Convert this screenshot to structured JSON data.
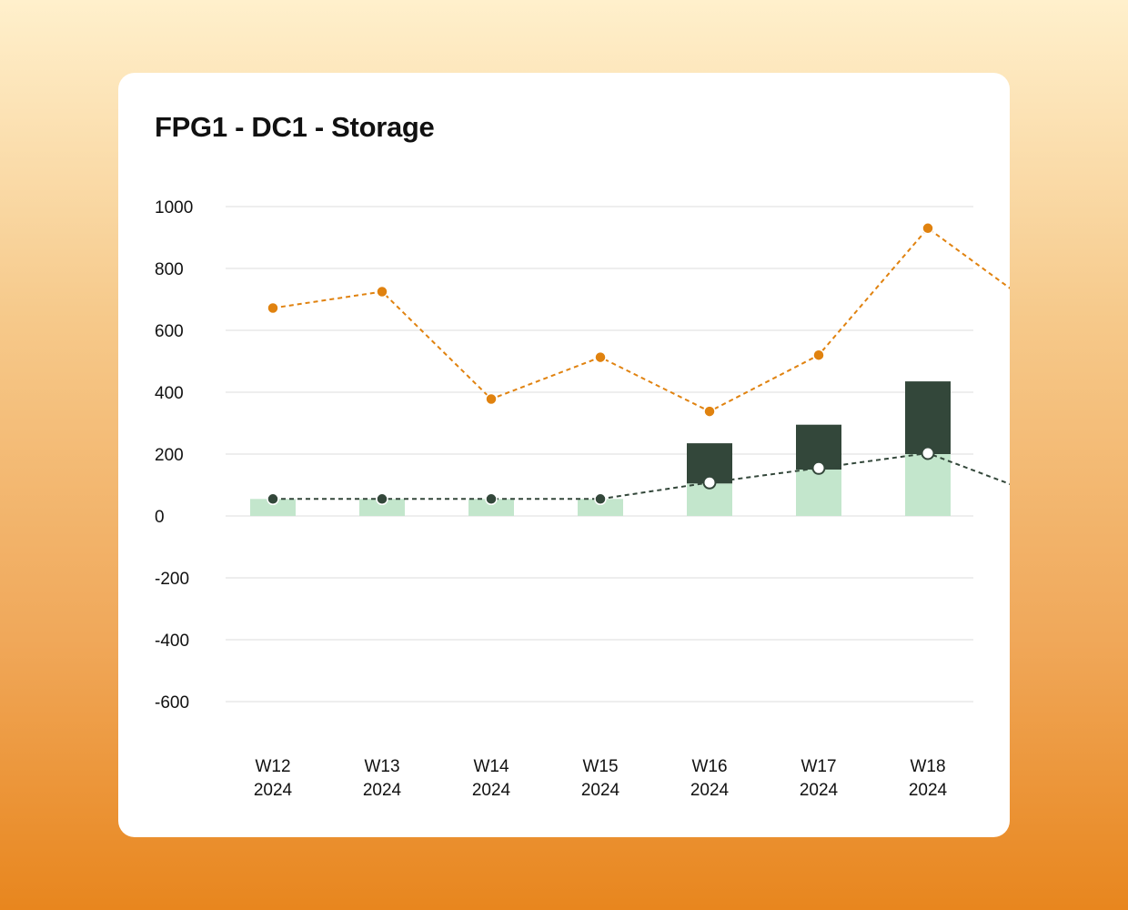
{
  "chart_data": {
    "type": "bar",
    "title": "FPG1 - DC1 - Storage",
    "categories": [
      [
        "W12",
        "2024"
      ],
      [
        "W13",
        "2024"
      ],
      [
        "W14",
        "2024"
      ],
      [
        "W15",
        "2024"
      ],
      [
        "W16",
        "2024"
      ],
      [
        "W17",
        "2024"
      ],
      [
        "W18",
        "2024"
      ]
    ],
    "y_ticks": [
      "1000",
      "800",
      "600",
      "400",
      "200",
      "0",
      "-200",
      "-400",
      "-600"
    ],
    "ylim": [
      -600,
      1000
    ],
    "grid": true,
    "bar_series": [
      {
        "values": [
          55,
          55,
          55,
          55,
          105,
          150,
          200
        ],
        "color": "#c3e6cc"
      },
      {
        "values": [
          0,
          0,
          0,
          0,
          130,
          145,
          235
        ],
        "color": "#33473a"
      }
    ],
    "line_series": [
      {
        "values": [
          672,
          725,
          378,
          513,
          338,
          520,
          930
        ],
        "continues_to": 672,
        "color": "#e0820f",
        "style": "dashed"
      },
      {
        "values": [
          55,
          55,
          55,
          55,
          108,
          155,
          203
        ],
        "continues_to": 70,
        "color": "#33473a",
        "style": "dashed"
      }
    ]
  }
}
